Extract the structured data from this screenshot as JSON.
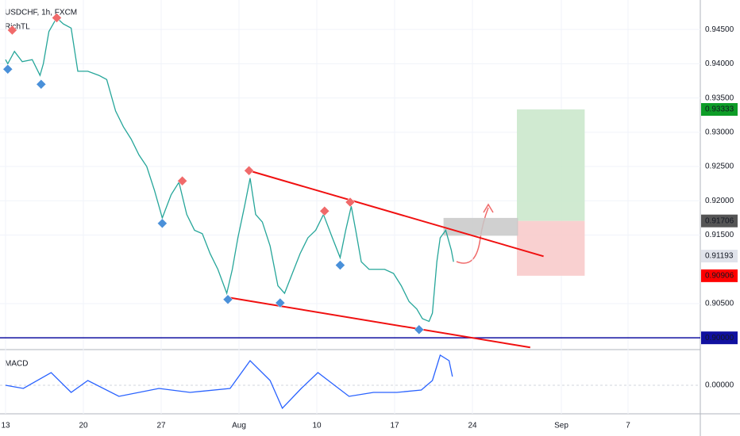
{
  "chart_data": {
    "type": "line",
    "title": "USDCHF, 1h, FXCM",
    "indicator": "RichTL",
    "xlim": [
      -0.5,
      62.5
    ],
    "ylim": [
      0.8984,
      0.9493
    ],
    "xticks": [
      {
        "value": 0,
        "label": "13"
      },
      {
        "value": 7,
        "label": "20"
      },
      {
        "value": 14,
        "label": "27"
      },
      {
        "value": 21,
        "label": "Aug"
      },
      {
        "value": 28,
        "label": "10"
      },
      {
        "value": 35,
        "label": "17"
      },
      {
        "value": 42,
        "label": "24"
      },
      {
        "value": 50,
        "label": "Sep"
      },
      {
        "value": 56,
        "label": "7"
      }
    ],
    "yticks": [
      {
        "value": 0.945,
        "label": "0.94500"
      },
      {
        "value": 0.94,
        "label": "0.94000"
      },
      {
        "value": 0.935,
        "label": "0.93500"
      },
      {
        "value": 0.93,
        "label": "0.93000"
      },
      {
        "value": 0.925,
        "label": "0.92500"
      },
      {
        "value": 0.92,
        "label": "0.92000"
      },
      {
        "value": 0.915,
        "label": "0.91500"
      },
      {
        "value": 0.905,
        "label": "0.90500"
      }
    ],
    "x": [
      0,
      0.2,
      0.8,
      1.5,
      2.4,
      3.1,
      3.4,
      3.9,
      4.6,
      5.2,
      5.9,
      6.5,
      7.4,
      8.4,
      9.1,
      9.9,
      10.6,
      11.3,
      12,
      12.7,
      13.4,
      14.1,
      14.9,
      15.6,
      16.3,
      17,
      17.7,
      18.4,
      19.1,
      19.9,
      20.4,
      20.9,
      21.5,
      22,
      22.5,
      23.1,
      23.8,
      24.5,
      25.1,
      25.8,
      26.5,
      27.2,
      27.9,
      28.6,
      29.4,
      30.1,
      30.6,
      31.1,
      31.5,
      32,
      32.7,
      33.4,
      34.1,
      34.9,
      35.6,
      36.3,
      37,
      37.5,
      38.1,
      38.4,
      38.8,
      39.1,
      39.6,
      40.1,
      40.3
    ],
    "series": [
      {
        "color": "#26a69a",
        "values": [
          0.9406,
          0.94,
          0.9418,
          0.9403,
          0.9406,
          0.9383,
          0.94,
          0.9447,
          0.9467,
          0.9458,
          0.9452,
          0.9389,
          0.9389,
          0.9383,
          0.9377,
          0.9331,
          0.9308,
          0.929,
          0.9267,
          0.925,
          0.9215,
          0.9175,
          0.9209,
          0.9227,
          0.918,
          0.9157,
          0.9152,
          0.9123,
          0.91,
          0.9065,
          0.91,
          0.9146,
          0.9192,
          0.9233,
          0.918,
          0.9169,
          0.9134,
          0.9076,
          0.9065,
          0.9094,
          0.9123,
          0.9146,
          0.9157,
          0.918,
          0.9146,
          0.9117,
          0.9157,
          0.9192,
          0.9157,
          0.9111,
          0.91,
          0.91,
          0.91,
          0.9094,
          0.9076,
          0.9053,
          0.9042,
          0.9028,
          0.9024,
          0.9036,
          0.9111,
          0.9146,
          0.9157,
          0.9128,
          0.9111
        ]
      }
    ],
    "high_markers": {
      "color": "#f06a6a",
      "x": [
        0.6,
        4.6,
        15.9,
        21.9,
        28.7,
        31
      ],
      "values": [
        0.9449,
        0.9467,
        0.9229,
        0.9244,
        0.9185,
        0.9198
      ]
    },
    "low_markers": {
      "color": "#4a90d9",
      "x": [
        0.2,
        3.2,
        14.1,
        20,
        24.7,
        30.1,
        37.2
      ],
      "values": [
        0.9392,
        0.937,
        0.9167,
        0.9056,
        0.9051,
        0.9106,
        0.9012
      ]
    },
    "trendlines": [
      {
        "color": "#f01010",
        "x": [
          21.9,
          48.4
        ],
        "values": [
          0.9244,
          0.9119
        ]
      },
      {
        "color": "#f01010",
        "x": [
          20,
          47.2
        ],
        "values": [
          0.9059,
          0.8986
        ]
      }
    ],
    "zones": [
      {
        "color": "#c8e6c9",
        "x": [
          46,
          52.1
        ],
        "values": [
          0.91706,
          0.93333
        ]
      },
      {
        "color": "#f8c8c8",
        "x": [
          46,
          52.1
        ],
        "values": [
          0.90906,
          0.91706
        ]
      },
      {
        "color": "#c8c8c8",
        "x": [
          39.4,
          46.1
        ],
        "values": [
          0.9149,
          0.9175
        ]
      }
    ],
    "level_line": {
      "color": "#1010a0",
      "value": 0.9
    },
    "price_labels": [
      {
        "value": 0.93333,
        "label": "0.93333",
        "color": "#0d9d27",
        "text_color": "#ffffff"
      },
      {
        "value": 0.91706,
        "label": "0.91706",
        "color": "#555555",
        "text_color": "#ffffff"
      },
      {
        "value": 0.91193,
        "label": "0.91193",
        "color": "#e0e3eb",
        "text_color": "#131722"
      },
      {
        "value": 0.90906,
        "label": "0.90906",
        "color": "#ff0000",
        "text_color": "#ffffff"
      },
      {
        "value": 0.9,
        "label": "0.90000",
        "color": "#1010a0",
        "text_color": "#ffffff"
      }
    ],
    "macd": {
      "label": "MACD",
      "color": "#2962ff",
      "ylim": [
        -0.0036,
        0.0043
      ],
      "yticks": [
        {
          "value": 0,
          "label": "0.00000"
        }
      ],
      "x": [
        0,
        1.6,
        4.1,
        5.9,
        7.4,
        10.2,
        13.8,
        16.6,
        20.2,
        22,
        23.8,
        24.9,
        26.6,
        28.1,
        29.5,
        30.9,
        33.1,
        35.2,
        37.4,
        38.4,
        39.1,
        39.9,
        40.2
      ],
      "values": [
        0,
        -0.0004,
        0.0016,
        -0.0009,
        0.0006,
        -0.0014,
        -0.0004,
        -0.0009,
        -0.0004,
        0.0031,
        0.0006,
        -0.0029,
        -0.0004,
        0.0016,
        0.0001,
        -0.0014,
        -0.0009,
        -0.0009,
        -0.0006,
        0.0006,
        0.0038,
        0.0031,
        0.0011
      ]
    }
  }
}
